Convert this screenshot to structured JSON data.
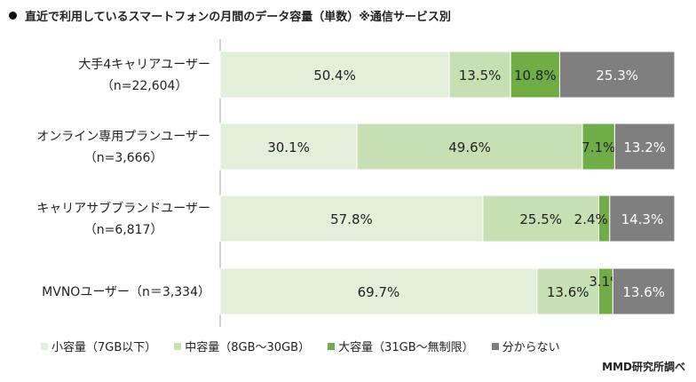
{
  "title": "直近で利用しているスマートフォンの月間のデータ容量（単数）※通信サービス別",
  "source": "MMD研究所調べ",
  "colors": {
    "small": "#e2efda",
    "medium": "#c6e0b4",
    "large": "#70ad47",
    "unknown": "#7f7f7f",
    "axis": "#a6a6a6"
  },
  "chart_data": {
    "type": "bar",
    "orientation": "horizontal",
    "stacked": "percent",
    "categories": [
      {
        "name": "大手4キャリアユーザー",
        "n": "（n=22,604）"
      },
      {
        "name": "オンライン専用プランユーザー",
        "n": "（n=3,666）"
      },
      {
        "name": "キャリアサブブランドユーザー",
        "n": "（n=6,817）"
      },
      {
        "name": "MVNOユーザー（n＝3,334）",
        "n": ""
      }
    ],
    "series": [
      {
        "name": "小容量（7GB以下）",
        "key": "small",
        "values": [
          50.4,
          30.1,
          57.8,
          69.7
        ]
      },
      {
        "name": "中容量（8GB～30GB）",
        "key": "medium",
        "values": [
          13.5,
          49.6,
          25.5,
          13.6
        ]
      },
      {
        "name": "大容量（31GB～無制限）",
        "key": "large",
        "values": [
          10.8,
          7.1,
          2.4,
          3.1
        ]
      },
      {
        "name": "分からない",
        "key": "unknown",
        "values": [
          25.3,
          13.2,
          14.3,
          13.6
        ]
      }
    ],
    "legend": "bottom",
    "grid": false
  }
}
